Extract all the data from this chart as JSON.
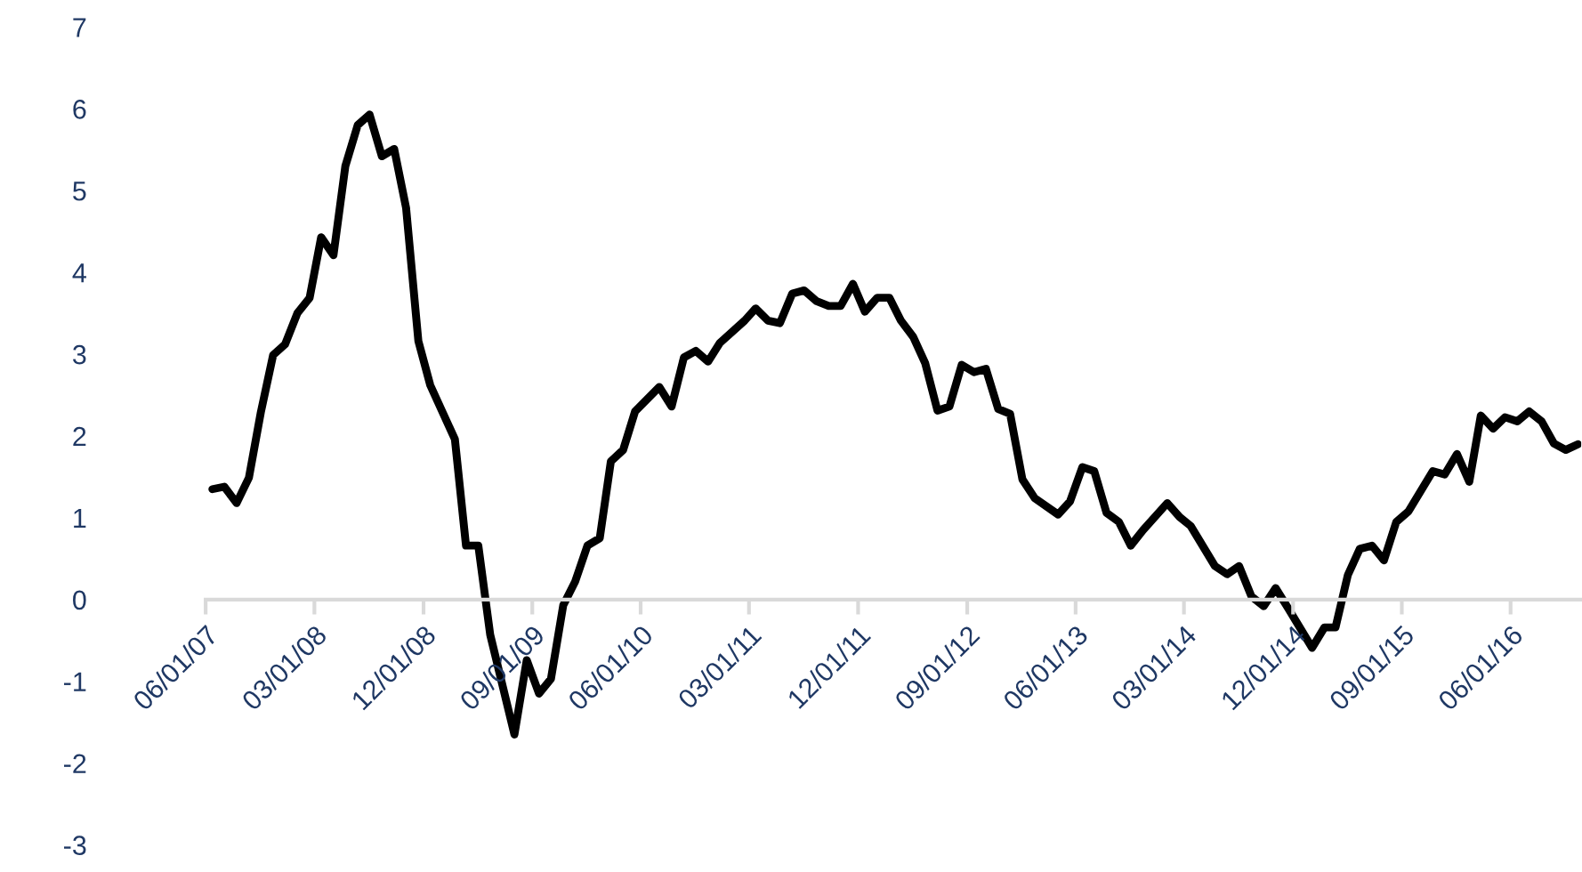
{
  "chart_data": {
    "type": "line",
    "x": [
      "2007-06-18",
      "2007-07-18",
      "2007-08-18",
      "2007-09-18",
      "2007-10-18",
      "2007-11-18",
      "2007-12-18",
      "2008-01-18",
      "2008-02-18",
      "2008-03-18",
      "2008-04-18",
      "2008-05-18",
      "2008-06-18",
      "2008-07-18",
      "2008-08-18",
      "2008-09-18",
      "2008-10-18",
      "2008-11-18",
      "2008-12-18",
      "2009-02-18",
      "2009-03-18",
      "2009-04-18",
      "2009-05-18",
      "2009-07-18",
      "2009-08-18",
      "2009-09-18",
      "2009-10-18",
      "2009-11-18",
      "2009-12-18",
      "2010-01-18",
      "2010-02-18",
      "2010-03-18",
      "2010-04-18",
      "2010-05-18",
      "2010-07-18",
      "2010-08-18",
      "2010-09-18",
      "2010-10-18",
      "2010-11-18",
      "2010-12-18",
      "2011-02-18",
      "2011-03-18",
      "2011-04-18",
      "2011-05-18",
      "2011-06-18",
      "2011-07-18",
      "2011-08-18",
      "2011-09-18",
      "2011-10-18",
      "2011-11-18",
      "2011-12-18",
      "2012-01-18",
      "2012-02-18",
      "2012-03-18",
      "2012-04-18",
      "2012-05-18",
      "2012-06-18",
      "2012-07-18",
      "2012-08-18",
      "2012-09-18",
      "2012-10-18",
      "2012-11-18",
      "2012-12-18",
      "2013-01-18",
      "2013-02-18",
      "2013-04-18",
      "2013-05-18",
      "2013-06-18",
      "2013-07-18",
      "2013-08-18",
      "2013-09-18",
      "2013-10-18",
      "2013-11-18",
      "2014-01-18",
      "2014-02-18",
      "2014-03-18",
      "2014-05-18",
      "2014-06-18",
      "2014-07-18",
      "2014-08-18",
      "2014-09-18",
      "2014-10-18",
      "2014-11-18",
      "2015-01-18",
      "2015-02-18",
      "2015-03-18",
      "2015-04-18",
      "2015-05-18",
      "2015-06-18",
      "2015-07-18",
      "2015-08-18",
      "2015-09-18",
      "2015-11-18",
      "2015-12-18",
      "2016-01-18",
      "2016-02-18",
      "2016-03-18",
      "2016-04-18",
      "2016-05-18",
      "2016-06-18",
      "2016-07-18",
      "2016-08-18",
      "2016-09-18",
      "2016-10-18",
      "2016-11-18"
    ],
    "series": [
      {
        "color": "#000000",
        "values": [
          1.35,
          1.38,
          1.18,
          1.49,
          2.29,
          2.99,
          3.12,
          3.5,
          3.69,
          4.43,
          4.21,
          5.3,
          5.8,
          5.93,
          5.42,
          5.51,
          4.79,
          3.16,
          2.62,
          1.96,
          0.66,
          0.66,
          -0.43,
          -1.65,
          -0.74,
          -1.15,
          -0.97,
          -0.07,
          0.22,
          0.66,
          0.75,
          1.69,
          1.83,
          2.3,
          2.6,
          2.36,
          2.96,
          3.04,
          2.91,
          3.14,
          3.41,
          3.56,
          3.41,
          3.38,
          3.74,
          3.78,
          3.65,
          3.59,
          3.59,
          3.86,
          3.52,
          3.69,
          3.69,
          3.41,
          3.21,
          2.89,
          2.31,
          2.36,
          2.87,
          2.78,
          2.82,
          2.33,
          2.27,
          1.47,
          1.24,
          1.04,
          1.2,
          1.62,
          1.57,
          1.06,
          0.95,
          0.66,
          0.85,
          1.18,
          1.01,
          0.9,
          0.41,
          0.31,
          0.41,
          0.04,
          -0.08,
          0.14,
          -0.1,
          -0.59,
          -0.34,
          -0.34,
          0.3,
          0.62,
          0.66,
          0.48,
          0.95,
          1.08,
          1.57,
          1.53,
          1.78,
          1.44,
          2.25,
          2.09,
          2.23,
          2.18,
          2.3,
          2.18,
          1.91,
          1.83,
          1.9
        ]
      }
    ],
    "xlim": [
      "2007-06-01",
      "2016-11-26"
    ],
    "xticks": [
      {
        "value": "2007-06-01",
        "label": "06/01/07"
      },
      {
        "value": "2008-03-01",
        "label": "03/01/08"
      },
      {
        "value": "2008-12-01",
        "label": "12/01/08"
      },
      {
        "value": "2009-09-01",
        "label": "09/01/09"
      },
      {
        "value": "2010-06-01",
        "label": "06/01/10"
      },
      {
        "value": "2011-03-01",
        "label": "03/01/11"
      },
      {
        "value": "2011-12-01",
        "label": "12/01/11"
      },
      {
        "value": "2012-09-01",
        "label": "09/01/12"
      },
      {
        "value": "2013-06-01",
        "label": "06/01/13"
      },
      {
        "value": "2014-03-01",
        "label": "03/01/14"
      },
      {
        "value": "2014-12-01",
        "label": "12/01/14"
      },
      {
        "value": "2015-09-01",
        "label": "09/01/15"
      },
      {
        "value": "2016-06-01",
        "label": "06/01/16"
      }
    ],
    "ylim": [
      -3,
      7
    ],
    "yticks": [
      -3,
      -2,
      -1,
      0,
      1,
      2,
      3,
      4,
      5,
      6,
      7
    ],
    "line_style": "solid"
  }
}
